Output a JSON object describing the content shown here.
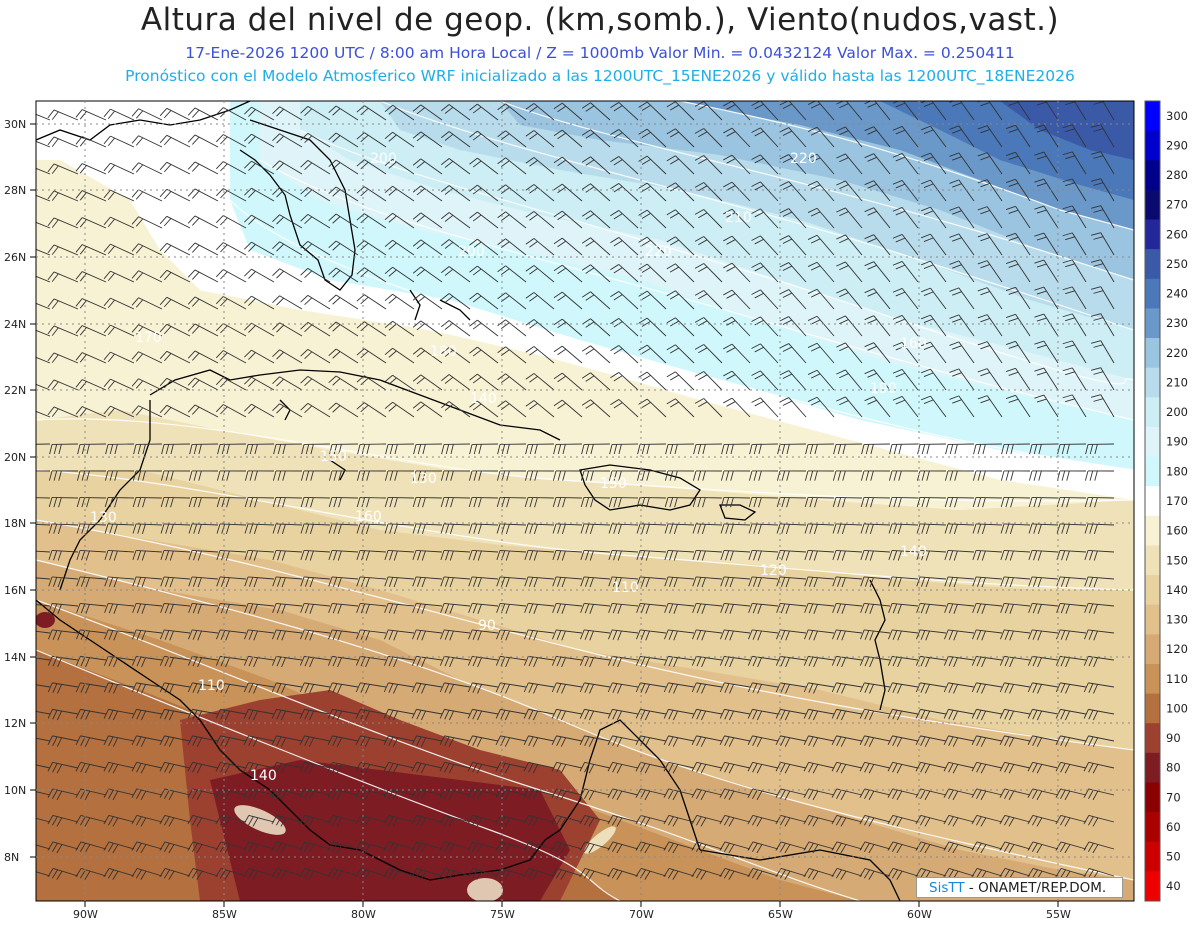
{
  "title": "Altura del nivel de geop. (km,somb.), Viento(nudos,vast.)",
  "subtitle_line1": "17-Ene-2026  1200 UTC / 8:00 am Hora Local / Z = 1000mb  Valor Min. = 0.0432124  Valor Max. = 0.250411",
  "subtitle_line2": "Pronóstico con el Modelo Atmosferico WRF inicializado a las 1200UTC_15ENE2026 y válido hasta las  1200UTC_18ENE2026",
  "colors": {
    "title": "#222222",
    "subtitle1": "#3b50d8",
    "subtitle2": "#1eaee8"
  },
  "lat_labels": [
    "30N",
    "28N",
    "26N",
    "24N",
    "22N",
    "20N",
    "18N",
    "16N",
    "14N",
    "12N",
    "10N",
    "8N"
  ],
  "lon_labels": [
    "90W",
    "85W",
    "80W",
    "75W",
    "70W",
    "65W",
    "60W",
    "55W"
  ],
  "colorbar": {
    "levels": [
      "300",
      "290",
      "280",
      "270",
      "260",
      "250",
      "240",
      "230",
      "220",
      "210",
      "200",
      "190",
      "180",
      "170",
      "160",
      "150",
      "140",
      "130",
      "120",
      "110",
      "100",
      "90",
      "80",
      "70",
      "60",
      "50",
      "40"
    ],
    "colors": [
      "#0000ff",
      "#0000cc",
      "#00008b",
      "#0a0a6e",
      "#22289a",
      "#3a5aa8",
      "#4a78b8",
      "#6a98c8",
      "#9ac4e0",
      "#b8dcec",
      "#cceef4",
      "#dff4f8",
      "#d0f8fc",
      "#ffffff",
      "#f8f2d4",
      "#f0e2b8",
      "#e8d2a0",
      "#e2c08c",
      "#d6aa74",
      "#c89258",
      "#b4703e",
      "#9c4030",
      "#7e1c24",
      "#8b0000",
      "#aa0000",
      "#cc0000",
      "#ee0000"
    ]
  },
  "contour_labels": [
    "200",
    "220",
    "210",
    "200",
    "220",
    "160",
    "170",
    "180",
    "190",
    "140",
    "150",
    "130",
    "150",
    "160",
    "140",
    "120",
    "110",
    "90",
    "110",
    "130",
    "140"
  ],
  "watermark": {
    "brand": "SisTT",
    "org": " - ONAMET/REP.DOM."
  }
}
